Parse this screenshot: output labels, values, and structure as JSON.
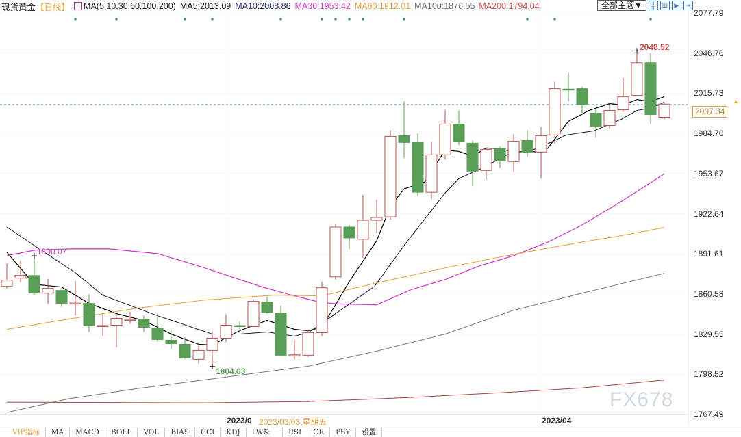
{
  "header": {
    "symbol": "现货黄金",
    "period": "【日线】",
    "ma_set": "MA(5,10,30,60,100,200)",
    "ma5": "MA5:2013.09",
    "ma10": "MA10:2008.86",
    "ma30": "MA30:1953.42",
    "ma60": "MA60:1912.01",
    "ma100": "MA100:1876.55",
    "ma200": "MA200:1794.04"
  },
  "toolbar": {
    "theme_select": "全部主题▼",
    "icons": [
      "crosshair-icon",
      "bar-panel-icon",
      "step-forward-icon",
      "exit-icon"
    ]
  },
  "price_axis": [
    "2077.79",
    "2046.76",
    "2015.73",
    "1984.70",
    "1953.67",
    "1922.64",
    "1891.61",
    "1860.58",
    "1829.55",
    "1798.52",
    "1767.49"
  ],
  "current_price": "2007.34",
  "annotations": {
    "high": "2048.52",
    "low": "1804.63",
    "ma30_peak": "1890.07"
  },
  "date_axis": {
    "label1": "2023/0",
    "tooltip": "2023/03/03 星期五",
    "label2": "2023/04"
  },
  "tabs": [
    "VIP指标",
    "MA",
    "MACD",
    "BOLL",
    "VOL",
    "BIAS",
    "CCI",
    "KDJ",
    "LW&",
    "RSI",
    "CR",
    "PSY",
    "设置"
  ],
  "watermark": "FX678",
  "colors": {
    "up": "#b9544f",
    "down": "#5a9e56",
    "ma5": "#000000",
    "ma10": "#111133",
    "ma30": "#cc33cc",
    "ma60": "#e0a040",
    "ma100": "#777777",
    "ma200": "#a8403c"
  },
  "chart_data": {
    "type": "candlestick",
    "ylim": [
      1767.49,
      2077.79
    ],
    "candles_ohlc": [
      [
        1866.5,
        1884.42,
        1864.92,
        1871.24
      ],
      [
        1872.82,
        1886.52,
        1869.66,
        1874.93
      ],
      [
        1874.93,
        1890.07,
        1859.65,
        1861.23
      ],
      [
        1861.23,
        1872.3,
        1852.8,
        1864.92
      ],
      [
        1863.34,
        1864.0,
        1850.69,
        1853.33
      ],
      [
        1853.33,
        1870.72,
        1843.85,
        1853.6
      ],
      [
        1853.33,
        1860.18,
        1831.2,
        1835.94
      ],
      [
        1835.94,
        1845.43,
        1828.04,
        1836.2
      ],
      [
        1836.47,
        1843.85,
        1819.08,
        1841.74
      ],
      [
        1840.68,
        1847.01,
        1837.52,
        1840.9
      ],
      [
        1841.21,
        1843.85,
        1831.2,
        1834.89
      ],
      [
        1833.83,
        1845.43,
        1823.82,
        1825.4
      ],
      [
        1824.88,
        1833.31,
        1818.03,
        1822.24
      ],
      [
        1821.72,
        1827.51,
        1810.12,
        1811.18
      ],
      [
        1810.12,
        1820.66,
        1806.96,
        1816.97
      ],
      [
        1816.97,
        1831.73,
        1804.63,
        1826.46
      ],
      [
        1826.46,
        1844.9,
        1823.3,
        1836.47
      ],
      [
        1836.2,
        1839.1,
        1830.67,
        1835.94
      ],
      [
        1835.41,
        1856.49,
        1835.0,
        1854.91
      ],
      [
        1854.38,
        1858.6,
        1845.43,
        1846.48
      ],
      [
        1845.95,
        1851.75,
        1812.8,
        1813.29
      ],
      [
        1813.29,
        1825.4,
        1810.12,
        1813.6
      ],
      [
        1813.29,
        1832.8,
        1812.0,
        1830.67
      ],
      [
        1830.67,
        1870.19,
        1828.04,
        1865.45
      ],
      [
        1873.88,
        1914.45,
        1871.77,
        1912.34
      ],
      [
        1912.34,
        1913.92,
        1895.48,
        1903.91
      ],
      [
        1902.86,
        1937.11,
        1888.63,
        1917.61
      ],
      [
        1917.61,
        1933.42,
        1907.6,
        1919.72
      ],
      [
        1920.25,
        1987.16,
        1918.14,
        1982.42
      ],
      [
        1982.95,
        2009.29,
        1965.56,
        1977.68
      ],
      [
        1977.68,
        1984.53,
        1936.05,
        1939.21
      ],
      [
        1939.21,
        1978.2,
        1933.95,
        1968.19
      ],
      [
        1968.19,
        2002.97,
        1964.51,
        1991.9
      ],
      [
        1991.9,
        2002.44,
        1975.57,
        1978.2
      ],
      [
        1977.15,
        1979.26,
        1943.96,
        1955.55
      ],
      [
        1956.07,
        1973.46,
        1948.7,
        1972.41
      ],
      [
        1972.94,
        1974.52,
        1958.18,
        1963.45
      ],
      [
        1962.92,
        1984.0,
        1955.02,
        1978.73
      ],
      [
        1979.26,
        1987.16,
        1966.61,
        1970.3
      ],
      [
        1970.3,
        1989.8,
        1949.75,
        1982.95
      ],
      [
        1983.47,
        2024.57,
        1976.62,
        2019.3
      ],
      [
        2019.0,
        2031.42,
        2009.29,
        2018.78
      ],
      [
        2019.3,
        2020.88,
        2000.33,
        2006.66
      ],
      [
        2000.33,
        2005.08,
        1981.37,
        1990.32
      ],
      [
        1990.85,
        2006.66,
        1988.74,
        2002.44
      ],
      [
        2002.97,
        2027.73,
        2001.39,
        2012.98
      ],
      [
        2014.03,
        2048.52,
        2014.03,
        2039.33
      ],
      [
        2039.33,
        2046.7,
        1991.9,
        1999.28
      ],
      [
        1997.17,
        2008.5,
        1995.59,
        2007.34
      ]
    ],
    "event_markers": [
      5,
      8,
      13,
      15,
      20,
      23,
      24,
      25,
      26,
      29,
      38,
      40,
      47
    ],
    "ma_series": [
      {
        "name": "MA5",
        "key": "ma5",
        "points": [
          [
            0,
            1892.85
          ],
          [
            2,
            1868.08
          ],
          [
            4,
            1865.98
          ],
          [
            6,
            1853.33
          ],
          [
            8,
            1845.43
          ],
          [
            10,
            1840.16
          ],
          [
            12,
            1829.62
          ],
          [
            14,
            1821.72
          ],
          [
            15,
            1821.19
          ],
          [
            17,
            1832.25
          ],
          [
            19,
            1840.16
          ],
          [
            21,
            1833.3
          ],
          [
            22,
            1832.25
          ],
          [
            23,
            1834.89
          ],
          [
            24,
            1852.28
          ],
          [
            25,
            1870.19
          ],
          [
            27,
            1901.8
          ],
          [
            28,
            1928.15
          ],
          [
            29,
            1941.85
          ],
          [
            30.5,
            1947.12
          ],
          [
            32,
            1971.88
          ],
          [
            33,
            1970.83
          ],
          [
            34,
            1967.14
          ],
          [
            35,
            1973.46
          ],
          [
            36,
            1972.94
          ],
          [
            37,
            1970.3
          ],
          [
            38,
            1970.83
          ],
          [
            39,
            1970.3
          ],
          [
            39.5,
            1973.46
          ],
          [
            41,
            1994.01
          ],
          [
            42.5,
            2002.44
          ],
          [
            44,
            2007.71
          ],
          [
            45,
            2006.66
          ],
          [
            46,
            2010.87
          ],
          [
            47,
            2009.29
          ],
          [
            48,
            2013.09
          ]
        ]
      },
      {
        "name": "MA10",
        "key": "ma10",
        "points": [
          [
            0,
            1912.34
          ],
          [
            2,
            1898.12
          ],
          [
            5,
            1877.04
          ],
          [
            7,
            1859.65
          ],
          [
            11,
            1843.85
          ],
          [
            15,
            1829.62
          ],
          [
            17,
            1829.62
          ],
          [
            19,
            1831.2
          ],
          [
            21,
            1828.04
          ],
          [
            22,
            1830.67
          ],
          [
            24,
            1845.43
          ],
          [
            26.85,
            1866.5
          ],
          [
            29,
            1898.12
          ],
          [
            32,
            1938.69
          ],
          [
            33,
            1949.75
          ],
          [
            34.65,
            1957.66
          ],
          [
            37,
            1970.83
          ],
          [
            38,
            1970.3
          ],
          [
            39.35,
            1976.1
          ],
          [
            40.85,
            1983.47
          ],
          [
            42.85,
            1986.64
          ],
          [
            44.85,
            1995.59
          ],
          [
            46,
            2002.44
          ],
          [
            47.15,
            2004.55
          ],
          [
            48,
            2008.86
          ]
        ]
      },
      {
        "name": "MA30",
        "key": "ma30",
        "points": [
          [
            0,
            1890.21
          ],
          [
            2,
            1894.43
          ],
          [
            4.5,
            1895.48
          ],
          [
            7.5,
            1895.48
          ],
          [
            11,
            1891.79
          ],
          [
            14,
            1882.31
          ],
          [
            18.5,
            1866.5
          ],
          [
            21,
            1859.13
          ],
          [
            23,
            1853.86
          ],
          [
            24.5,
            1852.8
          ],
          [
            27,
            1852.28
          ],
          [
            29.5,
            1863.87
          ],
          [
            32,
            1871.77
          ],
          [
            34.5,
            1882.31
          ],
          [
            37,
            1890.21
          ],
          [
            39.5,
            1900.75
          ],
          [
            42,
            1913.92
          ],
          [
            44.5,
            1929.73
          ],
          [
            48,
            1953.42
          ]
        ]
      },
      {
        "name": "MA60",
        "key": "ma60",
        "points": [
          [
            0,
            1833.31
          ],
          [
            4.5,
            1841.21
          ],
          [
            9.5,
            1849.64
          ],
          [
            14.5,
            1855.96
          ],
          [
            19.5,
            1859.65
          ],
          [
            23,
            1859.13
          ],
          [
            27,
            1869.14
          ],
          [
            32,
            1880.73
          ],
          [
            37,
            1891.27
          ],
          [
            42,
            1900.75
          ],
          [
            44.5,
            1904.97
          ],
          [
            48,
            1912.01
          ]
        ]
      },
      {
        "name": "MA100",
        "key": "ma100",
        "points": [
          [
            0,
            1769.03
          ],
          [
            4.5,
            1779.56
          ],
          [
            9.5,
            1787.47
          ],
          [
            14.5,
            1794.32
          ],
          [
            22,
            1804.85
          ],
          [
            27,
            1816.45
          ],
          [
            32,
            1829.62
          ],
          [
            37,
            1848.06
          ],
          [
            42,
            1861.23
          ],
          [
            48,
            1876.55
          ]
        ]
      },
      {
        "name": "MA200",
        "key": "ma200",
        "points": [
          [
            0,
            1776.93
          ],
          [
            14.5,
            1776.4
          ],
          [
            22,
            1777.46
          ],
          [
            29.5,
            1780.62
          ],
          [
            37,
            1784.83
          ],
          [
            42,
            1787.99
          ],
          [
            48,
            1794.04
          ]
        ]
      }
    ]
  }
}
